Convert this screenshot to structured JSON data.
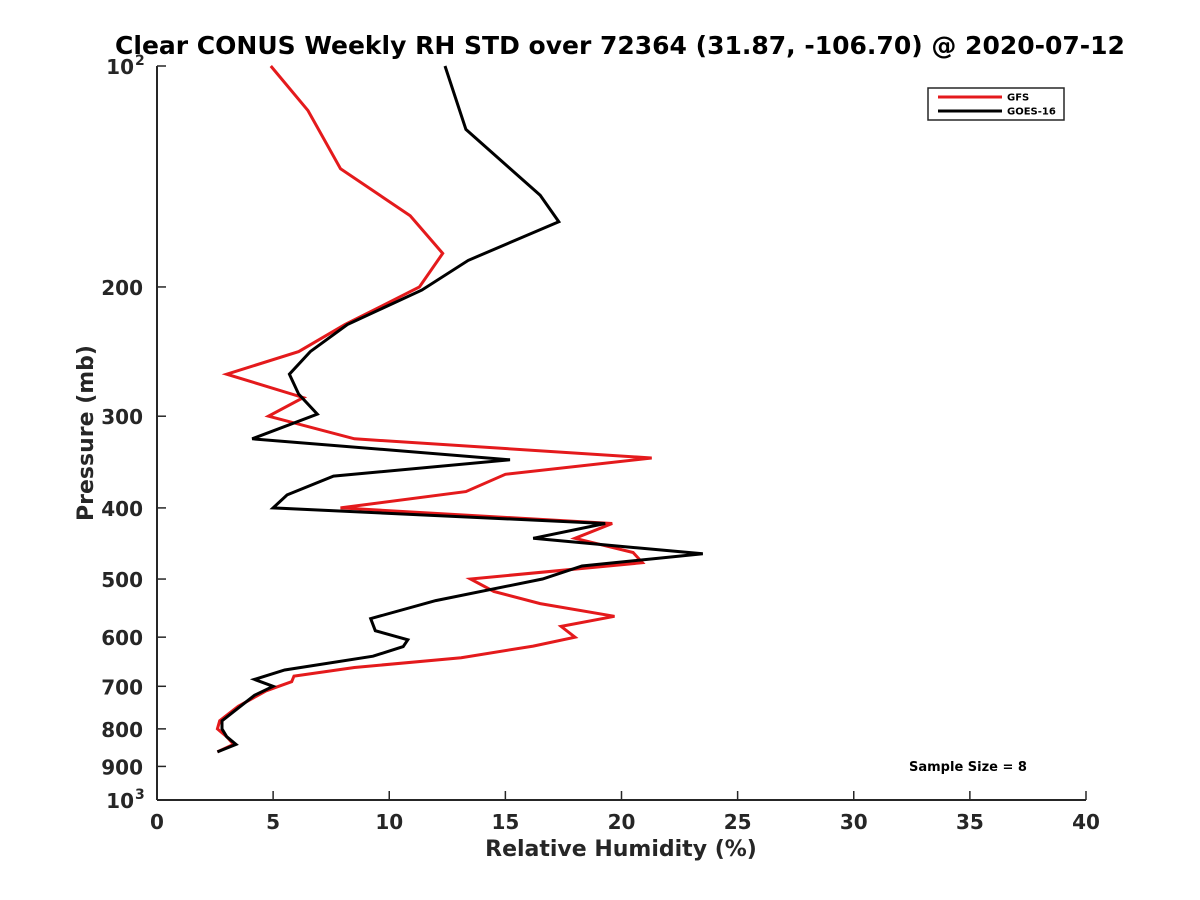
{
  "chart_data": {
    "type": "line",
    "title": "Clear CONUS Weekly RH STD over 72364 (31.87, -106.70) @ 2020-07-12",
    "xlabel": "Relative Humidity (%)",
    "ylabel": "Pressure (mb)",
    "xlim": [
      0,
      40
    ],
    "ylim": [
      100,
      1000
    ],
    "y_scale": "log",
    "y_reversed": true,
    "grid": false,
    "legend_position": "top-right",
    "x_ticks": [
      0,
      5,
      10,
      15,
      20,
      25,
      30,
      35,
      40
    ],
    "y_ticks": [
      {
        "value": 100,
        "label": "10",
        "sup": "2"
      },
      {
        "value": 200,
        "label": "200",
        "sup": ""
      },
      {
        "value": 300,
        "label": "300",
        "sup": ""
      },
      {
        "value": 400,
        "label": "400",
        "sup": ""
      },
      {
        "value": 500,
        "label": "500",
        "sup": ""
      },
      {
        "value": 600,
        "label": "600",
        "sup": ""
      },
      {
        "value": 700,
        "label": "700",
        "sup": ""
      },
      {
        "value": 800,
        "label": "800",
        "sup": ""
      },
      {
        "value": 900,
        "label": "900",
        "sup": ""
      },
      {
        "value": 1000,
        "label": "10",
        "sup": "3"
      }
    ],
    "series": [
      {
        "name": "GFS",
        "color": "#e41a1c",
        "points": [
          [
            4.9,
            100
          ],
          [
            6.5,
            115
          ],
          [
            7.9,
            138
          ],
          [
            10.9,
            160
          ],
          [
            12.3,
            180
          ],
          [
            11.3,
            200
          ],
          [
            8.1,
            225
          ],
          [
            6.1,
            245
          ],
          [
            3.0,
            263
          ],
          [
            6.3,
            283
          ],
          [
            4.8,
            300
          ],
          [
            8.5,
            322
          ],
          [
            21.3,
            342
          ],
          [
            15.0,
            360
          ],
          [
            13.3,
            380
          ],
          [
            7.9,
            400
          ],
          [
            19.6,
            420
          ],
          [
            18.0,
            440
          ],
          [
            20.5,
            460
          ],
          [
            20.9,
            475
          ],
          [
            13.5,
            500
          ],
          [
            14.5,
            520
          ],
          [
            16.5,
            540
          ],
          [
            19.7,
            562
          ],
          [
            17.4,
            580
          ],
          [
            18.0,
            600
          ],
          [
            16.2,
            617
          ],
          [
            13.1,
            640
          ],
          [
            8.5,
            660
          ],
          [
            5.9,
            678
          ],
          [
            5.8,
            690
          ],
          [
            4.7,
            710
          ],
          [
            3.5,
            745
          ],
          [
            2.7,
            780
          ],
          [
            2.6,
            800
          ],
          [
            3.0,
            820
          ],
          [
            3.3,
            840
          ],
          [
            2.6,
            860
          ]
        ]
      },
      {
        "name": "GOES-16",
        "color": "#000000",
        "points": [
          [
            12.4,
            100
          ],
          [
            13.3,
            122
          ],
          [
            16.5,
            150
          ],
          [
            17.3,
            163
          ],
          [
            13.4,
            184
          ],
          [
            11.4,
            202
          ],
          [
            8.2,
            225
          ],
          [
            6.6,
            245
          ],
          [
            5.7,
            263
          ],
          [
            6.1,
            280
          ],
          [
            6.9,
            298
          ],
          [
            4.1,
            322
          ],
          [
            15.2,
            344
          ],
          [
            7.6,
            362
          ],
          [
            5.6,
            384
          ],
          [
            5.0,
            400
          ],
          [
            19.3,
            420
          ],
          [
            16.2,
            440
          ],
          [
            23.5,
            462
          ],
          [
            18.3,
            480
          ],
          [
            16.6,
            500
          ],
          [
            12.0,
            535
          ],
          [
            9.2,
            566
          ],
          [
            9.4,
            588
          ],
          [
            10.8,
            605
          ],
          [
            10.6,
            618
          ],
          [
            9.3,
            637
          ],
          [
            5.5,
            665
          ],
          [
            4.2,
            685
          ],
          [
            5.0,
            700
          ],
          [
            4.2,
            720
          ],
          [
            3.6,
            745
          ],
          [
            2.8,
            780
          ],
          [
            2.8,
            800
          ],
          [
            3.0,
            820
          ],
          [
            3.4,
            840
          ],
          [
            2.6,
            860
          ]
        ]
      }
    ],
    "annotation": "Sample Size = 8"
  }
}
